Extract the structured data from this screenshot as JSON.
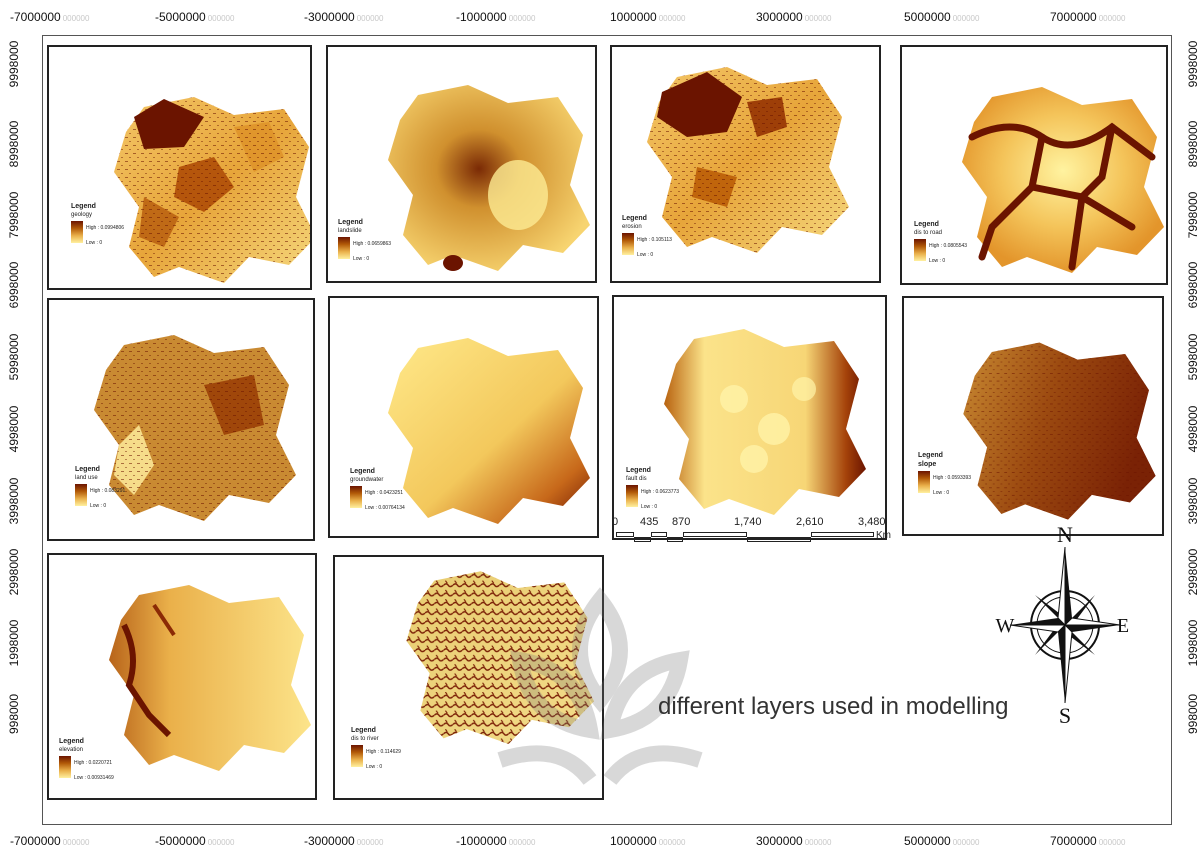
{
  "axis": {
    "x_ticks": [
      "-7000000",
      "-5000000",
      "-3000000",
      "-1000000",
      "1000000",
      "3000000",
      "5000000",
      "7000000"
    ],
    "y_ticks": [
      "9998000",
      "8998000",
      "7998000",
      "6998000",
      "5998000",
      "4998000",
      "3998000",
      "2998000",
      "1998000",
      "998000"
    ]
  },
  "panels": [
    {
      "legend_title": "Legend",
      "layer": "geology",
      "high": "High : 0.0994806",
      "low": "Low : 0"
    },
    {
      "legend_title": "Legend",
      "layer": "landslide",
      "high": "High : 0.0659863",
      "low": "Low : 0"
    },
    {
      "legend_title": "Legend",
      "layer": "erosion",
      "high": "High : 0.105113",
      "low": "Low : 0"
    },
    {
      "legend_title": "Legend",
      "layer": "dis to road",
      "high": "High : 0.0805543",
      "low": "Low : 0"
    },
    {
      "legend_title": "Legend",
      "layer": "land use",
      "high": "High : 0.083291",
      "low": "Low : 0"
    },
    {
      "legend_title": "Legend",
      "layer": "groundwater",
      "high": "High : 0.0423251",
      "low": "Low : 0.00764134"
    },
    {
      "legend_title": "Legend",
      "layer": "fault dis",
      "high": "High : 0.0623773",
      "low": "Low : 0"
    },
    {
      "legend_title": "Legend",
      "layer": "slope",
      "high": "High : 0.0593393",
      "low": "Low : 0"
    },
    {
      "legend_title": "Legend",
      "layer": "elevation",
      "high": "High : 0.0220721",
      "low": "Low : 0.00931469"
    },
    {
      "legend_title": "Legend",
      "layer": "dis to river",
      "high": "High : 0.114629",
      "low": "Low : 0"
    }
  ],
  "scalebar": {
    "labels": [
      "0",
      "435",
      "870",
      "1,740",
      "2,610",
      "3,480"
    ],
    "unit": "Km"
  },
  "compass": {
    "n": "N",
    "s": "S",
    "e": "E",
    "w": "W"
  },
  "caption": "different layers used in modelling",
  "colors": {
    "dark": "#6b1400",
    "mid": "#c0650c",
    "light": "#f0c257",
    "pale": "#fff2a8"
  }
}
